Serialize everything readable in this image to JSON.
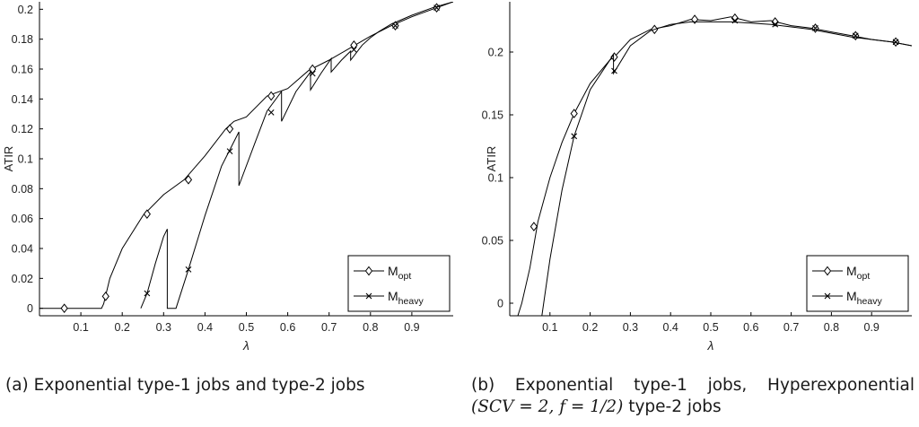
{
  "chart_data": [
    {
      "type": "line",
      "panel": "a",
      "xlabel": "λ",
      "ylabel": "ATIR",
      "xlim": [
        0,
        1
      ],
      "ylim": [
        -0.005,
        0.205
      ],
      "xticks": [
        0.1,
        0.2,
        0.3,
        0.4,
        0.5,
        0.6,
        0.7,
        0.8,
        0.9
      ],
      "xtick_labels": [
        "0.1",
        "0.2",
        "0.3",
        "0.4",
        "0.5",
        "0.6",
        "0.7",
        "0.8",
        "0.9"
      ],
      "yticks": [
        0,
        0.02,
        0.04,
        0.06,
        0.08,
        0.1,
        0.12,
        0.14,
        0.16,
        0.18,
        0.2
      ],
      "ytick_labels": [
        "0",
        "0.02",
        "0.04",
        "0.06",
        "0.08",
        "0.1",
        "0.12",
        "0.14",
        "0.16",
        "0.18",
        "0.2"
      ],
      "grid": false,
      "legend": "bottom-right",
      "series": [
        {
          "name": "M",
          "name_sub": "opt",
          "marker": "diamond",
          "x": [
            0,
            0.05,
            0.1,
            0.15,
            0.155,
            0.17,
            0.2,
            0.25,
            0.3,
            0.35,
            0.4,
            0.45,
            0.47,
            0.5,
            0.55,
            0.6,
            0.65,
            0.7,
            0.75,
            0.8,
            0.85,
            0.9,
            0.95,
            1.0
          ],
          "y": [
            0,
            0,
            0,
            0,
            0.003,
            0.02,
            0.04,
            0.062,
            0.076,
            0.086,
            0.102,
            0.12,
            0.125,
            0.128,
            0.142,
            0.147,
            0.159,
            0.166,
            0.174,
            0.182,
            0.189,
            0.195,
            0.2,
            0.205
          ],
          "marker_x": [
            0.06,
            0.16,
            0.26,
            0.36,
            0.46,
            0.56,
            0.66,
            0.76,
            0.86,
            0.96
          ],
          "marker_y": [
            0,
            0.008,
            0.063,
            0.086,
            0.12,
            0.142,
            0.16,
            0.176,
            0.189,
            0.201
          ]
        },
        {
          "name": "M",
          "name_sub": "heavy",
          "marker": "x",
          "x": [
            0.245,
            0.26,
            0.28,
            0.3,
            0.309,
            0.309,
            0.33,
            0.36,
            0.4,
            0.44,
            0.482,
            0.482,
            0.52,
            0.55,
            0.585,
            0.585,
            0.62,
            0.655,
            0.655,
            0.68,
            0.705,
            0.705,
            0.73,
            0.752,
            0.752,
            0.78,
            0.8,
            0.82,
            0.85,
            0.9,
            0.95,
            1.0
          ],
          "y": [
            0,
            0.01,
            0.03,
            0.048,
            0.053,
            0,
            0,
            0.026,
            0.062,
            0.095,
            0.118,
            0.082,
            0.11,
            0.132,
            0.145,
            0.125,
            0.145,
            0.158,
            0.146,
            0.157,
            0.167,
            0.158,
            0.166,
            0.172,
            0.166,
            0.176,
            0.181,
            0.185,
            0.19,
            0.196,
            0.201,
            0.205
          ],
          "marker_x": [
            0.26,
            0.36,
            0.46,
            0.56,
            0.66,
            0.76,
            0.86,
            0.96
          ],
          "marker_y": [
            0.01,
            0.026,
            0.105,
            0.131,
            0.157,
            0.173,
            0.189,
            0.201
          ]
        }
      ]
    },
    {
      "type": "line",
      "panel": "b",
      "xlabel": "λ",
      "ylabel": "ATIR",
      "xlim": [
        0,
        1
      ],
      "ylim": [
        -0.01,
        0.24
      ],
      "xticks": [
        0.1,
        0.2,
        0.3,
        0.4,
        0.5,
        0.6,
        0.7,
        0.8,
        0.9
      ],
      "xtick_labels": [
        "0.1",
        "0.2",
        "0.3",
        "0.4",
        "0.5",
        "0.6",
        "0.7",
        "0.8",
        "0.9"
      ],
      "yticks": [
        0,
        0.05,
        0.1,
        0.15,
        0.2
      ],
      "ytick_labels": [
        "0",
        "0.05",
        "0.1",
        "0.15",
        "0.2"
      ],
      "grid": false,
      "legend": "bottom-right",
      "series": [
        {
          "name": "M",
          "name_sub": "opt",
          "marker": "diamond",
          "x": [
            0.02,
            0.03,
            0.05,
            0.07,
            0.1,
            0.13,
            0.16,
            0.2,
            0.25,
            0.26,
            0.3,
            0.35,
            0.4,
            0.45,
            0.5,
            0.55,
            0.6,
            0.65,
            0.7,
            0.75,
            0.8,
            0.85,
            0.9,
            0.95,
            1.0
          ],
          "y": [
            -0.01,
            0,
            0.028,
            0.065,
            0.1,
            0.128,
            0.151,
            0.175,
            0.194,
            0.196,
            0.21,
            0.218,
            0.221,
            0.226,
            0.225,
            0.228,
            0.224,
            0.225,
            0.221,
            0.219,
            0.216,
            0.213,
            0.21,
            0.208,
            0.205
          ],
          "marker_x": [
            0.06,
            0.16,
            0.26,
            0.36,
            0.46,
            0.56,
            0.66,
            0.76,
            0.86,
            0.96
          ],
          "marker_y": [
            0.061,
            0.151,
            0.196,
            0.218,
            0.226,
            0.227,
            0.224,
            0.219,
            0.213,
            0.208
          ]
        },
        {
          "name": "M",
          "name_sub": "heavy",
          "marker": "x",
          "x": [
            0.08,
            0.1,
            0.13,
            0.16,
            0.2,
            0.258,
            0.258,
            0.3,
            0.35,
            0.4,
            0.45,
            0.5,
            0.55,
            0.6,
            0.65,
            0.7,
            0.75,
            0.8,
            0.85,
            0.9,
            0.95,
            1.0
          ],
          "y": [
            -0.01,
            0.035,
            0.09,
            0.133,
            0.17,
            0.198,
            0.183,
            0.205,
            0.217,
            0.222,
            0.224,
            0.224,
            0.224,
            0.223,
            0.222,
            0.22,
            0.218,
            0.215,
            0.212,
            0.21,
            0.208,
            0.205
          ],
          "marker_x": [
            0.16,
            0.26,
            0.56,
            0.66,
            0.76,
            0.86,
            0.96
          ],
          "marker_y": [
            0.133,
            0.185,
            0.225,
            0.222,
            0.219,
            0.213,
            0.208
          ]
        }
      ]
    }
  ],
  "captions": {
    "a": "(a) Exponential type-1 jobs and type-2 jobs",
    "b_line1_words": [
      "(b)",
      "Exponential",
      "type-1",
      "jobs,",
      "Hyperexponential"
    ],
    "b_line2_math": "(SCV = 2, f = 1/2)",
    "b_line2_text": " type-2 jobs"
  }
}
